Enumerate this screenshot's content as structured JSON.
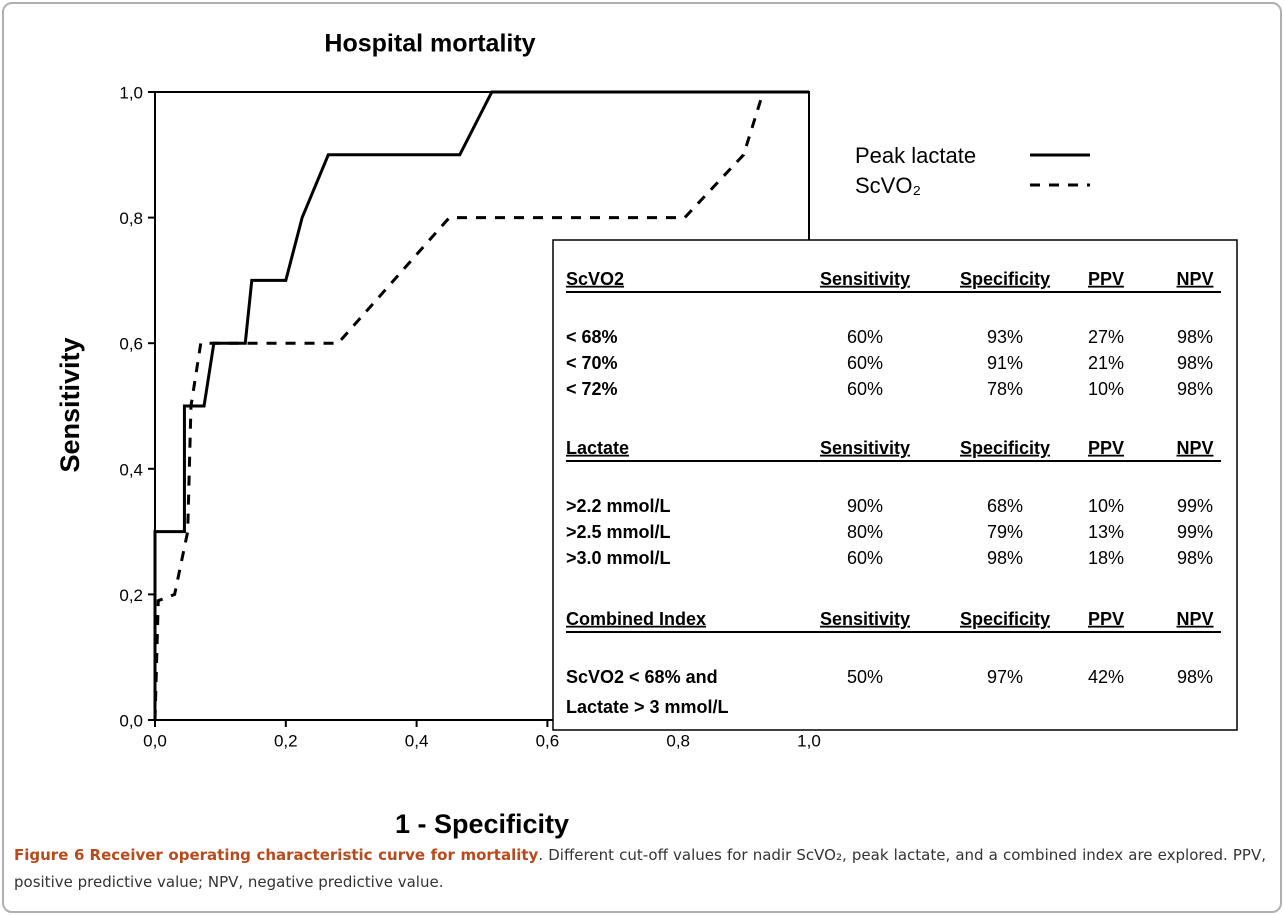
{
  "chart_data": {
    "type": "line",
    "title": "Hospital mortality",
    "x_label": "1 - Specificity",
    "y_label": "Sensitivity",
    "xlim": [
      0,
      1
    ],
    "ylim": [
      0,
      1
    ],
    "xticks": [
      {
        "value": 0,
        "label": "0,0"
      },
      {
        "value": 0.2,
        "label": "0,2"
      },
      {
        "value": 0.4,
        "label": "0,4"
      },
      {
        "value": 0.6,
        "label": "0,6"
      },
      {
        "value": 0.8,
        "label": "0,8"
      },
      {
        "value": 1,
        "label": "1,0"
      }
    ],
    "yticks": [
      {
        "value": 0,
        "label": "0,0"
      },
      {
        "value": 0.2,
        "label": "0,2"
      },
      {
        "value": 0.4,
        "label": "0,4"
      },
      {
        "value": 0.6,
        "label": "0,6"
      },
      {
        "value": 0.8,
        "label": "0,8"
      },
      {
        "value": 1,
        "label": "1,0"
      }
    ],
    "series": [
      {
        "name": "Peak lactate",
        "color": "#000000",
        "dash": "solid",
        "x": [
          0,
          0,
          0.045,
          0.045,
          0.075,
          0.09,
          0.138,
          0.148,
          0.2,
          0.225,
          0.265,
          0.466,
          0.515,
          1
        ],
        "values": [
          0,
          0.3,
          0.3,
          0.5,
          0.5,
          0.6,
          0.6,
          0.7,
          0.7,
          0.8,
          0.9,
          0.9,
          1,
          1
        ]
      },
      {
        "name": "ScVO₂",
        "color": "#000000",
        "dash": "dashed",
        "x": [
          0,
          0.005,
          0.03,
          0.05,
          0.055,
          0.07,
          0.28,
          0.45,
          0.81,
          0.9,
          0.93,
          1
        ],
        "values": [
          0,
          0.19,
          0.2,
          0.3,
          0.5,
          0.6,
          0.6,
          0.8,
          0.8,
          0.9,
          1,
          1
        ]
      }
    ]
  },
  "table": {
    "sections": [
      {
        "header": [
          "ScVO2",
          "Sensitivity",
          "Specificity",
          "PPV",
          "NPV"
        ],
        "rows": [
          [
            [
              "< 68%"
            ],
            "60%",
            "93%",
            "27%",
            "98%"
          ],
          [
            [
              "< 70%"
            ],
            "60%",
            "91%",
            "21%",
            "98%"
          ],
          [
            [
              "< 72%"
            ],
            "60%",
            "78%",
            "10%",
            "98%"
          ]
        ]
      },
      {
        "header": [
          "Lactate",
          "Sensitivity",
          "Specificity",
          "PPV",
          "NPV"
        ],
        "rows": [
          [
            [
              ">2.2 mmol/L"
            ],
            "90%",
            "68%",
            "10%",
            "99%"
          ],
          [
            [
              ">2.5 mmol/L"
            ],
            "80%",
            "79%",
            "13%",
            "99%"
          ],
          [
            [
              ">3.0 mmol/L"
            ],
            "60%",
            "98%",
            "18%",
            "98%"
          ]
        ]
      },
      {
        "header": [
          "Combined Index",
          "Sensitivity",
          "Specificity",
          "PPV",
          "NPV"
        ],
        "rows": [
          [
            [
              "ScVO2 < 68% and",
              "Lactate > 3 mmol/L"
            ],
            "50%",
            "97%",
            "42%",
            "98%"
          ]
        ]
      }
    ]
  },
  "caption": {
    "label": "Figure 6",
    "title": "Receiver operating characteristic curve for mortality",
    "text": ". Different cut-off values for nadir ScVO₂, peak lactate, and a combined index are explored. PPV, positive predictive value; NPV, negative predictive value."
  }
}
